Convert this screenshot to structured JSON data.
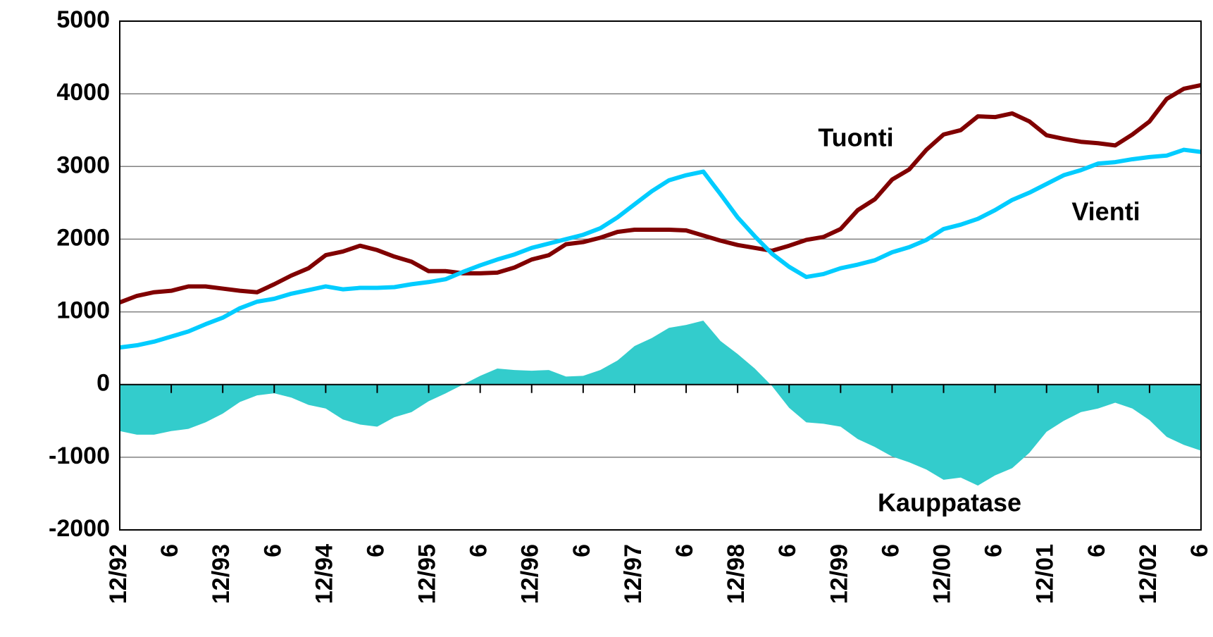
{
  "chart_data": {
    "type": "line",
    "categories": [
      "12/92",
      null,
      null,
      "6",
      null,
      null,
      "12/93",
      null,
      null,
      "6",
      null,
      null,
      "12/94",
      null,
      null,
      "6",
      null,
      null,
      "12/95",
      null,
      null,
      "6",
      null,
      null,
      "12/96",
      null,
      null,
      "6",
      null,
      null,
      "12/97",
      null,
      null,
      "6",
      null,
      null,
      "12/98",
      null,
      null,
      "6",
      null,
      null,
      "12/99",
      null,
      null,
      "6",
      null,
      null,
      "12/00",
      null,
      null,
      "6",
      null,
      null,
      "12/01",
      null,
      null,
      "6",
      null,
      null,
      "12/02",
      null,
      null,
      "6"
    ],
    "series": [
      {
        "name": "Kauppatase",
        "type": "area",
        "color": "#33cccc",
        "values": [
          -640,
          -690,
          -690,
          -640,
          -610,
          -520,
          -400,
          -240,
          -150,
          -120,
          -180,
          -280,
          -330,
          -480,
          -550,
          -580,
          -450,
          -380,
          -230,
          -120,
          0,
          120,
          220,
          200,
          190,
          200,
          110,
          120,
          200,
          330,
          530,
          640,
          780,
          820,
          880,
          600,
          420,
          220,
          -20,
          -320,
          -520,
          -540,
          -580,
          -750,
          -860,
          -990,
          -1070,
          -1170,
          -1310,
          -1280,
          -1390,
          -1250,
          -1150,
          -940,
          -650,
          -500,
          -380,
          -330,
          -250,
          -330,
          -490,
          -720,
          -830,
          -910
        ]
      },
      {
        "name": "Tuonti",
        "type": "line",
        "color": "#800000",
        "values": [
          1130,
          1220,
          1270,
          1290,
          1350,
          1350,
          1320,
          1290,
          1270,
          1380,
          1500,
          1600,
          1780,
          1830,
          1910,
          1850,
          1760,
          1690,
          1560,
          1560,
          1530,
          1530,
          1540,
          1610,
          1720,
          1780,
          1930,
          1960,
          2020,
          2100,
          2130,
          2130,
          2130,
          2120,
          2050,
          1980,
          1920,
          1880,
          1840,
          1910,
          1990,
          2030,
          2140,
          2400,
          2550,
          2820,
          2960,
          3230,
          3440,
          3500,
          3690,
          3680,
          3730,
          3620,
          3430,
          3380,
          3340,
          3320,
          3290,
          3440,
          3620,
          3930,
          4070,
          4120
        ]
      },
      {
        "name": "Vienti",
        "type": "line",
        "color": "#00ccff",
        "values": [
          510,
          540,
          590,
          660,
          730,
          830,
          920,
          1050,
          1140,
          1180,
          1250,
          1300,
          1350,
          1310,
          1330,
          1330,
          1340,
          1380,
          1410,
          1450,
          1550,
          1640,
          1720,
          1790,
          1880,
          1940,
          2000,
          2060,
          2150,
          2300,
          2480,
          2660,
          2810,
          2880,
          2930,
          2620,
          2300,
          2040,
          1800,
          1620,
          1480,
          1520,
          1600,
          1650,
          1710,
          1820,
          1890,
          1990,
          2140,
          2200,
          2280,
          2400,
          2540,
          2640,
          2760,
          2880,
          2950,
          3040,
          3060,
          3100,
          3130,
          3150,
          3230,
          3200
        ]
      }
    ],
    "ylim": [
      -2000,
      5000
    ],
    "yticks": [
      -2000,
      -1000,
      0,
      1000,
      2000,
      3000,
      4000,
      5000
    ],
    "grid": true
  }
}
